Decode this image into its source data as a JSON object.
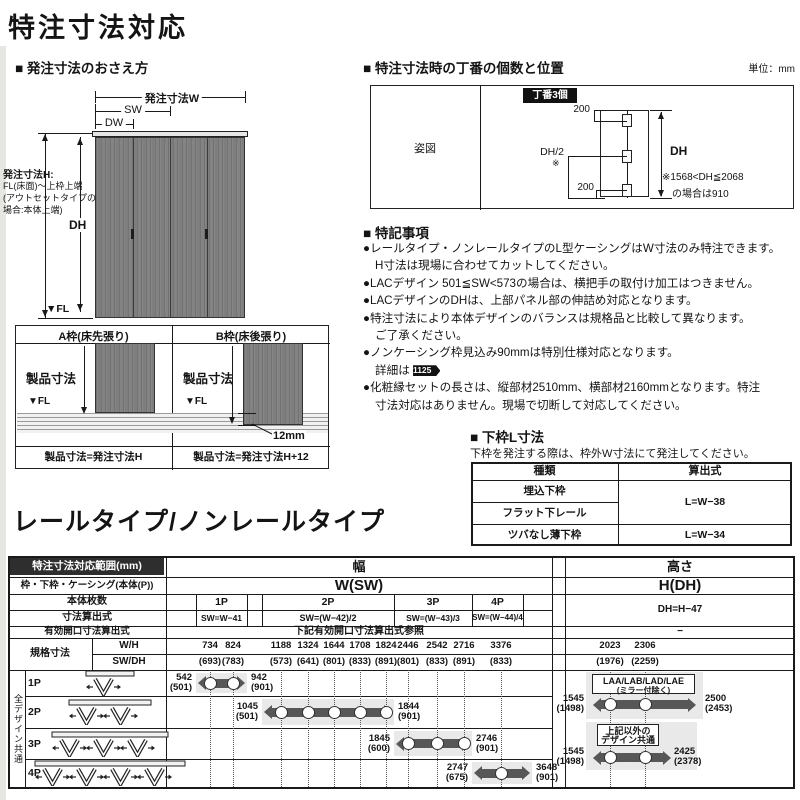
{
  "colors": {
    "ink": "#1a1a1a",
    "header_bg": "#2e2e2e",
    "bar": "#575757",
    "range_bg": "#e9e9e9",
    "wood": "#7e7e7e"
  },
  "page": {
    "title": "特注寸法対応",
    "subtitle": "レールタイプ/ノンレールタイプ"
  },
  "order": {
    "heading": "■ 発注寸法のおさえ方",
    "dim_w": "発注寸法W",
    "dim_sw": "SW",
    "dim_dw": "DW",
    "h_title": "発注寸法H:",
    "h_l1": "FL(床面)～上枠上端",
    "h_l2": "(アウトセットタイプの",
    "h_l3": "場合:本体上端)",
    "dh": "DH",
    "fl": "▼FL"
  },
  "frames": {
    "a_title": "A枠(床先張り)",
    "b_title": "B枠(床後張り)",
    "product": "製品寸法",
    "fl": "▼FL",
    "gap": "12mm",
    "a_formula": "製品寸法=発注寸法H",
    "b_formula": "製品寸法=発注寸法H+12"
  },
  "hinge": {
    "heading": "■ 特注寸法時の丁番の個数と位置",
    "unit": "単位：mm",
    "row_label": "姿図",
    "badge": "丁番3個",
    "d_top": "200",
    "d_mid": "DH/2",
    "d_mid_note": "※",
    "d_bottom": "200",
    "d_right": "DH",
    "note1": "※1568<DH≦2068",
    "note2": "の場合は910"
  },
  "notes": {
    "heading": "■ 特記事項",
    "items": [
      {
        "lines": [
          "レールタイプ・ノンレールタイプのL型ケーシングはW寸法のみ特注できます。",
          "H寸法は現場に合わせてカットしてください。"
        ]
      },
      {
        "lines": [
          "LACデザイン 501≦SW<573の場合は、横把手の取付け加工はつきません。"
        ]
      },
      {
        "lines": [
          "LACデザインのDHは、上部パネル部の伸詰め対応となります。"
        ]
      },
      {
        "lines": [
          "特注寸法により本体デザインのバランスは規格品と比較して異なります。",
          "ご了承ください。"
        ]
      },
      {
        "lines": [
          "ノンケーシング枠見込み90mmは特別仕様対応となります。",
          "詳細は "
        ],
        "badge": "P.1125",
        "badge_line": 1
      },
      {
        "lines": [
          "化粧縁セットの長さは、縦部材2510mm、横部材2160mmとなります。特注",
          "寸法対応はありません。現場で切断して対応してください。"
        ]
      }
    ]
  },
  "shimowaku": {
    "heading": "■ 下枠L寸法",
    "caption": "下枠を発注する際は、枠外W寸法にて発注してください。",
    "col_type": "種類",
    "col_formula": "算出式",
    "rows": [
      {
        "type": "埋込下枠",
        "formula": "L=W−38",
        "span": 2
      },
      {
        "type": "フラット下レール"
      },
      {
        "type": "ツバなし薄下枠",
        "formula": "L=W−34"
      }
    ]
  },
  "table": {
    "corner": "特注寸法対応範囲(mm)",
    "frame_row": "枠・下枠・ケーシング(本体(P))",
    "panels_row": "本体枚数",
    "formula_row": "寸法算出式",
    "opening_row": "有効開口寸法算出式",
    "std_row": "規格寸法",
    "wh": "W/H",
    "swdh": "SW/DH",
    "group_label": "全デザイン共通",
    "width": {
      "title": "幅",
      "sym": "W(SW)",
      "p_labels": [
        "1P",
        "2P",
        "3P",
        "4P"
      ],
      "p_formulas": [
        "SW=W−41",
        "SW=(W−42)/2",
        "SW=(W−43)/3",
        "SW=(W−44)/4"
      ],
      "opening_note": "下記有効開口寸法算出式参照",
      "std_w": [
        "734",
        "824",
        "1188",
        "1324",
        "1644",
        "1708",
        "1824",
        "2446",
        "2542",
        "2716",
        "3376"
      ],
      "std_sw": [
        "(693)",
        "(783)",
        "(573)",
        "(641)",
        "(801)",
        "(833)",
        "(891)",
        "(801)",
        "(833)",
        "(891)",
        "(833)"
      ]
    },
    "height": {
      "title": "高さ",
      "sym": "H(DH)",
      "formula": "DH=H−47",
      "opening_note": "−",
      "std_h": [
        "2023",
        "2306"
      ],
      "std_dh": [
        "(1976)",
        "(2259)"
      ]
    },
    "body": [
      {
        "label": "1P",
        "panels": 1,
        "min": "542",
        "min2": "(501)",
        "max": "942",
        "max2": "(901)"
      },
      {
        "label": "2P",
        "panels": 2,
        "min": "1045",
        "min2": "(501)",
        "max": "1844",
        "max2": "(901)"
      },
      {
        "label": "3P",
        "panels": 3,
        "min": "1845",
        "min2": "(600)",
        "max": "2746",
        "max2": "(901)"
      },
      {
        "label": "4P",
        "panels": 4,
        "min": "2747",
        "min2": "(675)",
        "max": "3648",
        "max2": "(901)"
      }
    ],
    "height_groups": [
      {
        "label1": "LAA/LAB/LAD/LAE",
        "label2": "(ミラー付除く)",
        "min": "1545",
        "min2": "(1498)",
        "max": "2500",
        "max2": "(2453)"
      },
      {
        "label1": "上記以外の",
        "label2": "デザイン共通",
        "min": "1545",
        "min2": "(1498)",
        "max": "2425",
        "max2": "(2378)"
      }
    ]
  }
}
